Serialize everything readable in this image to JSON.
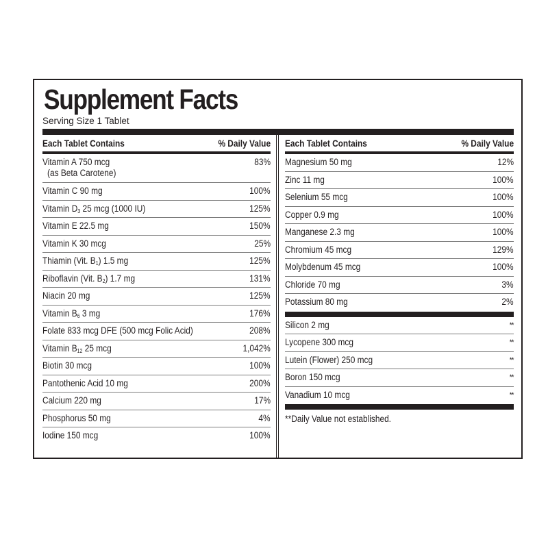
{
  "label": {
    "title": "Supplement Facts",
    "serving_size": "Serving Size 1 Tablet",
    "footnote": "**Daily Value not established."
  },
  "left_column": {
    "header_name": "Each Tablet Contains",
    "header_dv": "% Daily Value",
    "rows": [
      {
        "name": "Vitamin A 750 mcg",
        "name_line2": "(as Beta Carotene)",
        "dv": "83%"
      },
      {
        "name": "Vitamin C 90 mg",
        "dv": "100%"
      },
      {
        "name_pre": "Vitamin D",
        "name_sub": "3",
        "name_post": " 25 mcg (1000 IU)",
        "dv": "125%"
      },
      {
        "name": "Vitamin E 22.5 mg",
        "dv": "150%"
      },
      {
        "name": "Vitamin K 30 mcg",
        "dv": "25%"
      },
      {
        "name_pre": "Thiamin (Vit. B",
        "name_sub": "1",
        "name_post": ") 1.5 mg",
        "dv": "125%"
      },
      {
        "name_pre": "Riboflavin (Vit. B",
        "name_sub": "2",
        "name_post": ") 1.7 mg",
        "dv": "131%"
      },
      {
        "name": "Niacin 20 mg",
        "dv": "125%"
      },
      {
        "name_pre": "Vitamin B",
        "name_sub": "6",
        "name_post": " 3 mg",
        "dv": "176%"
      },
      {
        "name": "Folate 833 mcg DFE (500 mcg Folic Acid)",
        "dv": "208%"
      },
      {
        "name_pre": "Vitamin B",
        "name_sub": "12",
        "name_post": " 25 mcg",
        "dv": "1,042%"
      },
      {
        "name": "Biotin 30 mcg",
        "dv": "100%"
      },
      {
        "name": "Pantothenic Acid 10 mg",
        "dv": "200%"
      },
      {
        "name": "Calcium 220 mg",
        "dv": "17%"
      },
      {
        "name": "Phosphorus 50 mg",
        "dv": "4%"
      },
      {
        "name": "Iodine 150 mcg",
        "dv": "100%"
      }
    ]
  },
  "right_column": {
    "header_name": "Each Tablet Contains",
    "header_dv": "% Daily Value",
    "rows": [
      {
        "name": "Magnesium 50 mg",
        "dv": "12%"
      },
      {
        "name": "Zinc 11 mg",
        "dv": "100%"
      },
      {
        "name": "Selenium 55 mcg",
        "dv": "100%"
      },
      {
        "name": "Copper 0.9 mg",
        "dv": "100%"
      },
      {
        "name": "Manganese 2.3 mg",
        "dv": "100%"
      },
      {
        "name": "Chromium 45 mcg",
        "dv": "129%"
      },
      {
        "name": "Molybdenum  45 mcg",
        "dv": "100%"
      },
      {
        "name": "Chloride  70 mg",
        "dv": "3%"
      },
      {
        "name": "Potassium  80 mg",
        "dv": "2%"
      }
    ],
    "no_dv_rows": [
      {
        "name": "Silicon  2 mg",
        "dv": "**"
      },
      {
        "name": "Lycopene  300 mcg",
        "dv": "**"
      },
      {
        "name": "Lutein (Flower)  250 mcg",
        "dv": "**"
      },
      {
        "name": "Boron  150 mcg",
        "dv": "**"
      },
      {
        "name": "Vanadium  10 mcg",
        "dv": "**"
      }
    ]
  },
  "colors": {
    "ink": "#231f20",
    "rule": "#7a7a7a",
    "background": "#ffffff"
  }
}
